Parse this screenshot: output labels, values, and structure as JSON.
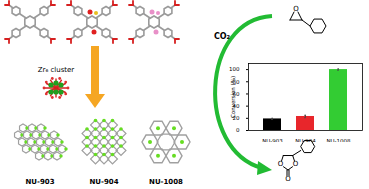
{
  "diagram": {
    "cluster_label": "Zr₆ cluster",
    "frameworks": [
      "NU-903",
      "NU-904",
      "NU-1008"
    ],
    "reagent": "CO₂",
    "epoxide_atoms": [
      "O"
    ],
    "carbonate_atoms": [
      "O",
      "O",
      "O"
    ]
  },
  "chart_data": {
    "type": "bar",
    "categories": [
      "NU-903",
      "NU-904",
      "NU-1008"
    ],
    "values": [
      19,
      23,
      100
    ],
    "errors": [
      1,
      2,
      1
    ],
    "colors": [
      "#000000",
      "#e8262b",
      "#33cc33"
    ],
    "ylabel": "Conversion (%)",
    "ylim": [
      0,
      110
    ],
    "yticks": [
      0,
      20,
      40,
      60,
      80,
      100
    ]
  }
}
